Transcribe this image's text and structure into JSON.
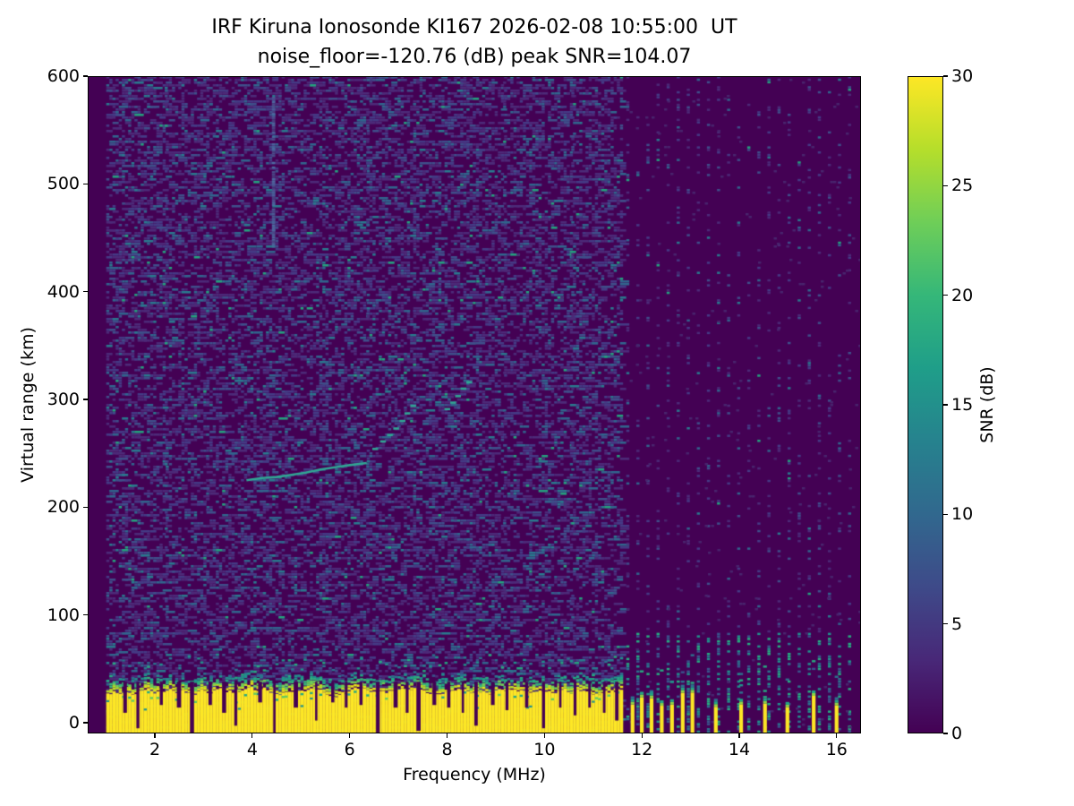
{
  "chart_data": {
    "type": "heatmap",
    "title": "IRF Kiruna Ionosonde KI167 2026-02-08 10:55:00  UT",
    "subtitle": "noise_floor=-120.76 (dB) peak SNR=104.07",
    "xlabel": "Frequency (MHz)",
    "ylabel": "Virtual range (km)",
    "x_ticks": [
      2,
      4,
      6,
      8,
      10,
      12,
      14,
      16
    ],
    "y_ticks": [
      0,
      100,
      200,
      300,
      400,
      500,
      600
    ],
    "x_range": [
      0.62,
      16.5
    ],
    "y_range": [
      -10,
      600
    ],
    "grid": false,
    "legend": "none",
    "colorbar": {
      "label": "SNR (dB)",
      "ticks": [
        0,
        5,
        10,
        15,
        20,
        25,
        30
      ],
      "range": [
        0,
        30
      ],
      "colormap": "viridis",
      "stops": [
        "#440154",
        "#482878",
        "#3e4a89",
        "#31688e",
        "#26828e",
        "#1f9e89",
        "#35b779",
        "#6ece58",
        "#b5de2b",
        "#fde725"
      ]
    },
    "content": {
      "background_color": "#440154",
      "noise": {
        "seed": 1337,
        "density": 0.36,
        "palette": [
          {
            "color": "#4c2a78",
            "w": 0.4
          },
          {
            "color": "#453a85",
            "w": 0.27
          },
          {
            "color": "#3f4e8a",
            "w": 0.17
          },
          {
            "color": "#31648d",
            "w": 0.1
          },
          {
            "color": "#2a788e",
            "w": 0.045
          },
          {
            "color": "#25a07e",
            "w": 0.015
          }
        ],
        "dense_columns_mhz": [
          2.2,
          3.05,
          5.5,
          6.35,
          7.3,
          8.6,
          9.15,
          10.55
        ]
      },
      "sweep": {
        "f_start": 1.0,
        "f_stop": 11.57
      },
      "ground_band": {
        "color": "#fde725",
        "mean_top_km": 28,
        "transition_colors": [
          "#e8e419",
          "#b8de29",
          "#6ece58",
          "#35b779",
          "#22a884",
          "#21918c",
          "#2c728e",
          "#3a548c"
        ],
        "notches": [
          [
            1.35,
            0.6
          ],
          [
            1.62,
            0.9
          ],
          [
            2.1,
            0.45
          ],
          [
            2.45,
            0.5
          ],
          [
            2.72,
            1.0
          ],
          [
            3.1,
            0.45
          ],
          [
            3.38,
            0.6
          ],
          [
            3.63,
            0.85
          ],
          [
            4.12,
            0.4
          ],
          [
            4.43,
            1.0
          ],
          [
            4.85,
            0.5
          ],
          [
            5.29,
            0.75
          ],
          [
            5.62,
            0.4
          ],
          [
            5.9,
            0.5
          ],
          [
            6.2,
            0.45
          ],
          [
            6.54,
            1.0
          ],
          [
            6.9,
            0.5
          ],
          [
            7.15,
            0.6
          ],
          [
            7.37,
            0.95
          ],
          [
            7.7,
            0.45
          ],
          [
            8.0,
            0.5
          ],
          [
            8.3,
            0.6
          ],
          [
            8.56,
            0.85
          ],
          [
            8.9,
            0.45
          ],
          [
            9.2,
            0.55
          ],
          [
            9.6,
            0.5
          ],
          [
            9.95,
            0.9
          ],
          [
            10.3,
            0.5
          ],
          [
            10.6,
            0.65
          ],
          [
            10.9,
            0.5
          ],
          [
            11.2,
            0.6
          ],
          [
            11.45,
            0.75
          ]
        ]
      },
      "tx_columns_mhz": [
        11.77,
        11.96,
        12.16,
        12.37,
        12.58,
        12.8,
        13.0,
        13.48,
        14.0,
        14.49,
        14.95,
        15.49,
        15.96
      ],
      "rx_columns": {
        "f_start": 11.68,
        "f_step": 0.207,
        "f_stop": 16.35
      },
      "interference_stripe": {
        "f": 4.42,
        "km_from": 441,
        "km_to": 581,
        "color": "#4e6fa3"
      },
      "echo_trace": {
        "color": "#31a694",
        "solid": [
          [
            3.88,
            225
          ],
          [
            4.2,
            227
          ],
          [
            4.5,
            228
          ],
          [
            4.8,
            230
          ],
          [
            5.1,
            232
          ],
          [
            5.4,
            235
          ],
          [
            5.7,
            237
          ],
          [
            6.0,
            239
          ],
          [
            6.35,
            241
          ]
        ],
        "dashes": [
          [
            6.52,
            254
          ],
          [
            6.68,
            261
          ],
          [
            6.82,
            267
          ],
          [
            6.95,
            273
          ],
          [
            7.08,
            280
          ],
          [
            7.18,
            287
          ],
          [
            7.3,
            294
          ],
          [
            8.0,
            291
          ],
          [
            8.12,
            297
          ],
          [
            8.22,
            303
          ],
          [
            8.33,
            310
          ],
          [
            8.45,
            316
          ]
        ]
      }
    }
  }
}
